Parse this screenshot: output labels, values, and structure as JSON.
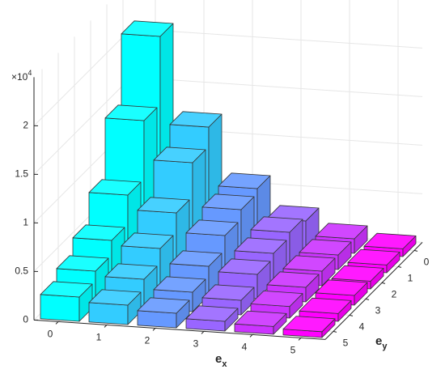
{
  "chart_data": {
    "type": "bar3",
    "z_multiplier": {
      "base": "×10",
      "exp": "4"
    },
    "xlabel": {
      "base": "e",
      "sub": "x"
    },
    "ylabel": {
      "base": "e",
      "sub": "y"
    },
    "xlim": [
      -0.5,
      5.5
    ],
    "ylim": [
      -0.5,
      5.5
    ],
    "zlim": [
      0,
      2.5
    ],
    "xticks": [
      0,
      1,
      2,
      3,
      4,
      5
    ],
    "yticks": [
      0,
      1,
      2,
      3,
      4,
      5
    ],
    "zticks": [
      0,
      0.5,
      1,
      1.5,
      2
    ],
    "grid": true,
    "series": [
      {
        "color": "#00ffff",
        "values": [
          2.1,
          1.4,
          0.8,
          0.5,
          0.35,
          0.25
        ]
      },
      {
        "color": "#33ccff",
        "values": [
          1.2,
          1.0,
          0.65,
          0.45,
          0.3,
          0.2
        ]
      },
      {
        "color": "#6699ff",
        "values": [
          0.6,
          0.55,
          0.45,
          0.3,
          0.2,
          0.15
        ]
      },
      {
        "color": "#9966ff",
        "values": [
          0.3,
          0.35,
          0.3,
          0.25,
          0.15,
          0.1
        ]
      },
      {
        "color": "#cc33ff",
        "values": [
          0.15,
          0.15,
          0.15,
          0.15,
          0.12,
          0.08
        ]
      },
      {
        "color": "#ff00ff",
        "values": [
          0.08,
          0.08,
          0.08,
          0.1,
          0.08,
          0.06
        ]
      }
    ]
  }
}
